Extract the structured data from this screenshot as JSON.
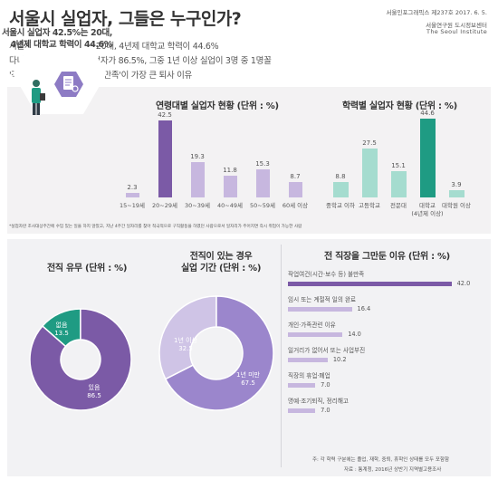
{
  "header": {
    "title": "서울시 실업자, 그들은 누구인가?",
    "publication_line": "서울인포그래픽스 제237호 2017. 6. 5.",
    "institute_ko": "서울연구원 도시정보센터",
    "institute_en": "The Seoul Institute"
  },
  "summary": [
    "서울시 실업자 42.5%는 20대, 4년제 대학교 학력이 44.6%",
    "다니던 직장을 그만둔 실업자가 86.5%, 그중 1년 이상 실업이 3명 중 1명꼴",
    "'작업여건(시간, 보수 등) 불만족'이 가장 큰 퇴사 이유"
  ],
  "callout": {
    "line1": "서울시 실업자 42.5%는 20대,",
    "line2": "4년제 대학교 학력이 44.6%"
  },
  "footnotes": {
    "definition": "*실업자란 조사대상주간에 수입 있는 일을 하지 않았고, 지난 4주간 일자리를 찾아 적극적으로 구직활동을 하였던 사람으로서 일자리가 주어지면 즉시 취업이 가능한 사람",
    "note": "주: 각 학력 구분에는 졸업, 재학, 중퇴, 휴학인 상태를 모두 포함함",
    "source": "자료 : 통계청, 2016년 상반기 지역별고용조사"
  },
  "colors": {
    "accent_purple": "#7b5aa6",
    "light_purple": "#c7b7df",
    "accent_teal": "#1f9b83",
    "light_teal": "#a5dccf",
    "duration_light": "#cfc4e6",
    "duration_dark": "#9b86cc"
  },
  "icons": [
    "hexagon-badge-icon",
    "job-seeker-person-icon",
    "resume-document-icon"
  ],
  "chart_data": [
    {
      "type": "bar",
      "title": "연령대별 실업자 현황 (단위 : %)",
      "categories": [
        "15~19세",
        "20~29세",
        "30~39세",
        "40~49세",
        "50~59세",
        "60세 이상"
      ],
      "values": [
        2.3,
        42.5,
        19.3,
        11.8,
        15.3,
        8.7
      ],
      "highlight_index": 1
    },
    {
      "type": "bar",
      "title": "학력별 실업자 현황 (단위 : %)",
      "categories": [
        "중학교 이하",
        "고등학교",
        "전문대",
        "대학교",
        "대학원 이상"
      ],
      "category_notes": [
        "",
        "",
        "",
        "(4년제 이상)",
        ""
      ],
      "values": [
        8.8,
        27.5,
        15.1,
        44.6,
        3.9
      ],
      "highlight_index": 3
    },
    {
      "type": "pie",
      "title": "전직 유무 (단위 : %)",
      "categories": [
        "없음",
        "있음"
      ],
      "values": [
        13.5,
        86.5
      ]
    },
    {
      "type": "pie",
      "title": "전직이 있는 경우 실업 기간 (단위 : %)",
      "title_lines": [
        "전직이 있는 경우",
        "실업 기간 (단위 : %)"
      ],
      "categories": [
        "1년 이상",
        "1년 미만"
      ],
      "values": [
        32.5,
        67.5
      ]
    },
    {
      "type": "bar",
      "orientation": "horizontal",
      "title": "전 직장을 그만둔 이유 (단위 : %)",
      "categories": [
        "작업여건(시간·보수 등) 불만족",
        "임시 또는 계절적 일의 완료",
        "개인·가족관련 이유",
        "일거리가 없어서 또는 사업부진",
        "직장의 휴업·폐업",
        "명예·조기퇴직, 정리해고"
      ],
      "values": [
        42.0,
        16.4,
        14.0,
        10.2,
        7.0,
        7.0
      ]
    }
  ]
}
